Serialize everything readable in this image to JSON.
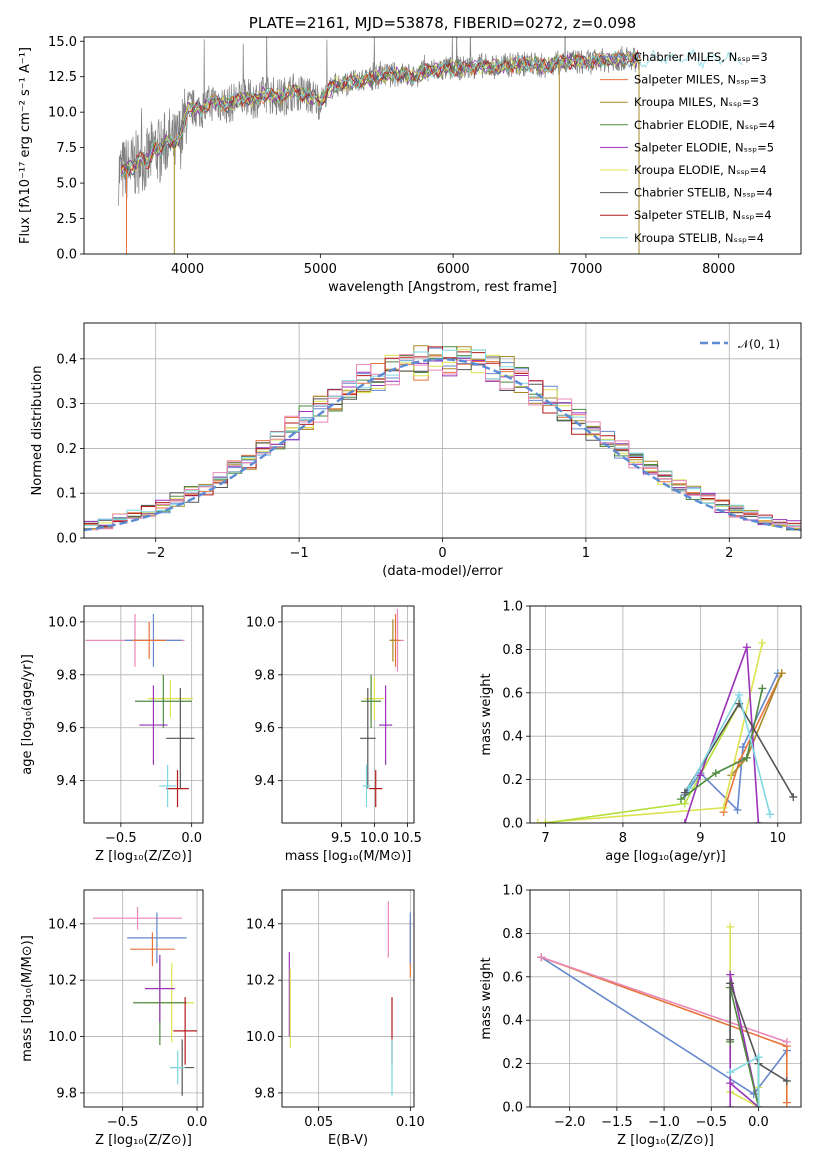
{
  "colors": {
    "chabrier_miles": "#6688cc",
    "salpeter_miles": "#e8743b",
    "kroupa_miles": "#a88a2a",
    "chabrier_elodie": "#4e8a40",
    "salpeter_elodie": "#9a33b8",
    "kroupa_elodie": "#dce34f",
    "chabrier_stelib": "#555555",
    "salpeter_stelib": "#b31b1b",
    "kroupa_stelib": "#7ed7e2",
    "pink": "#e889b8",
    "lime": "#b5df3a",
    "olive": "#8a9a3a",
    "data": "#808080",
    "normal": "#5b8bd5"
  },
  "chart_data": [
    {
      "id": "spectrum",
      "type": "line",
      "title": "PLATE=2161, MJD=53878, FIBERID=0272, z=0.098",
      "xlabel": "wavelength [Angstrom, rest frame]",
      "ylabel": "Flux [fλ10⁻¹⁷ erg cm⁻² s⁻¹ A⁻¹]",
      "xlim": [
        3220,
        8620
      ],
      "ylim": [
        0,
        15.3
      ],
      "xticks": [
        "4000",
        "5000",
        "6000",
        "7000",
        "8000"
      ],
      "yticks": [
        "0.0",
        "2.5",
        "5.0",
        "7.5",
        "10.0",
        "12.5",
        "15.0"
      ],
      "legend_position": "top-right",
      "legend": [
        {
          "label": "Chabrier MILES, Nₛₛₚ=3",
          "color": "#6688cc"
        },
        {
          "label": "Salpeter MILES, Nₛₛₚ=3",
          "color": "#e8743b"
        },
        {
          "label": "Kroupa MILES, Nₛₛₚ=3",
          "color": "#a88a2a"
        },
        {
          "label": "Chabrier ELODIE, Nₛₛₚ=4",
          "color": "#4e8a40"
        },
        {
          "label": "Salpeter ELODIE, Nₛₛₚ=5",
          "color": "#9a33b8"
        },
        {
          "label": "Kroupa ELODIE, Nₛₛₚ=4",
          "color": "#dce34f"
        },
        {
          "label": "Chabrier STELIB, Nₛₛₚ=4",
          "color": "#555555"
        },
        {
          "label": "Salpeter STELIB, Nₛₛₚ=4",
          "color": "#b31b1b"
        },
        {
          "label": "Kroupa STELIB, Nₛₛₚ=4",
          "color": "#7ed7e2"
        }
      ],
      "model_x": [
        3500,
        3550,
        3600,
        3650,
        3700,
        3750,
        3800,
        3850,
        3900,
        3950,
        4000,
        4100,
        4200,
        4300,
        4400,
        4500,
        4600,
        4700,
        4800,
        4900,
        5000,
        5100,
        5200,
        5300,
        5400,
        5500,
        5600,
        5700,
        5800,
        5900,
        6000,
        6100,
        6200,
        6300,
        6400,
        6500,
        6600,
        6700,
        6800,
        6900,
        7000,
        7100,
        7200,
        7300,
        7400,
        7500,
        7600,
        7700,
        7800,
        7900,
        8000,
        8100,
        8200
      ],
      "model_y": [
        5.8,
        6.0,
        6.2,
        6.8,
        6.5,
        7.5,
        7.2,
        8.2,
        7.6,
        8.4,
        10.3,
        10.2,
        10.8,
        10.5,
        11.0,
        10.9,
        11.3,
        11.0,
        11.5,
        11.2,
        10.8,
        11.9,
        12.0,
        12.2,
        12.4,
        12.6,
        12.7,
        12.5,
        12.9,
        13.0,
        13.1,
        13.1,
        13.3,
        13.2,
        13.3,
        13.4,
        13.4,
        13.2,
        13.5,
        13.6,
        13.5,
        13.6,
        13.7,
        13.8,
        13.7,
        13.8,
        13.9,
        13.7,
        13.9,
        13.6,
        13.8,
        13.7,
        13.8
      ],
      "drop_lines_x": [
        3900,
        6800,
        7400
      ]
    },
    {
      "id": "residuals",
      "type": "histogram",
      "xlabel": "(data-model)/error",
      "ylabel": "Normed distribution",
      "xlim": [
        -2.5,
        2.5
      ],
      "ylim": [
        0,
        0.48
      ],
      "xticks": [
        "−2",
        "−1",
        "0",
        "1",
        "2"
      ],
      "yticks": [
        "0.0",
        "0.1",
        "0.2",
        "0.3",
        "0.4"
      ],
      "grid": true,
      "legend_position": "top-right",
      "legend": [
        {
          "label": "𝒩(0, 1)",
          "color": "#5b8bd5"
        }
      ],
      "bin_width": 0.1
    },
    {
      "id": "age_vs_Z",
      "type": "errorbar",
      "xlabel": "Z [log₁₀(Z/Z⊙)]",
      "ylabel": "age  [log₁₀(age/yr)]",
      "xlim": [
        -0.76,
        0.08
      ],
      "ylim": [
        9.24,
        10.06
      ],
      "xticks": [
        "−0.5",
        "0.0"
      ],
      "yticks": [
        "9.4",
        "9.6",
        "9.8",
        "10.0"
      ],
      "grid": true,
      "points": [
        {
          "x": -0.4,
          "y": 9.93,
          "xerr": 0.35,
          "yerr": 0.1,
          "color": "#e889b8"
        },
        {
          "x": -0.27,
          "y": 9.93,
          "xerr": 0.2,
          "yerr": 0.1,
          "color": "#6688cc"
        },
        {
          "x": -0.3,
          "y": 9.93,
          "xerr": 0.12,
          "yerr": 0.07,
          "color": "#e8743b"
        },
        {
          "x": -0.15,
          "y": 9.71,
          "xerr": 0.16,
          "yerr": 0.07,
          "color": "#dce34f"
        },
        {
          "x": -0.2,
          "y": 9.7,
          "xerr": 0.2,
          "yerr": 0.1,
          "color": "#4e8a40"
        },
        {
          "x": -0.27,
          "y": 9.61,
          "xerr": 0.1,
          "yerr": 0.15,
          "color": "#9a33b8"
        },
        {
          "x": -0.08,
          "y": 9.56,
          "xerr": 0.1,
          "yerr": 0.19,
          "color": "#555555"
        },
        {
          "x": -0.1,
          "y": 9.37,
          "xerr": 0.08,
          "yerr": 0.07,
          "color": "#b31b1b"
        },
        {
          "x": -0.17,
          "y": 9.38,
          "xerr": 0.06,
          "yerr": 0.08,
          "color": "#7ed7e2"
        }
      ]
    },
    {
      "id": "age_vs_mass",
      "type": "errorbar",
      "xlabel": "mass [log₁₀(M/M⊙)]",
      "ylabel": "",
      "xlim": [
        8.6,
        10.6
      ],
      "ylim": [
        9.24,
        10.06
      ],
      "xticks": [
        "9.5",
        "10.0",
        "10.5"
      ],
      "yticks": [
        "9.4",
        "9.6",
        "9.8",
        "10.0"
      ],
      "grid": true,
      "points": [
        {
          "x": 10.35,
          "y": 9.93,
          "xerr": 0.1,
          "yerr": 0.12,
          "color": "#e889b8"
        },
        {
          "x": 10.32,
          "y": 9.93,
          "xerr": 0.08,
          "yerr": 0.1,
          "color": "#e8743b"
        },
        {
          "x": 10.28,
          "y": 9.93,
          "xerr": 0.05,
          "yerr": 0.08,
          "color": "#a88a2a"
        },
        {
          "x": 10.0,
          "y": 9.71,
          "xerr": 0.15,
          "yerr": 0.08,
          "color": "#dce34f"
        },
        {
          "x": 9.95,
          "y": 9.7,
          "xerr": 0.15,
          "yerr": 0.1,
          "color": "#4e8a40"
        },
        {
          "x": 10.17,
          "y": 9.61,
          "xerr": 0.1,
          "yerr": 0.15,
          "color": "#9a33b8"
        },
        {
          "x": 9.9,
          "y": 9.56,
          "xerr": 0.12,
          "yerr": 0.19,
          "color": "#555555"
        },
        {
          "x": 10.02,
          "y": 9.37,
          "xerr": 0.1,
          "yerr": 0.07,
          "color": "#b31b1b"
        },
        {
          "x": 9.88,
          "y": 9.38,
          "xerr": 0.06,
          "yerr": 0.08,
          "color": "#7ed7e2"
        }
      ]
    },
    {
      "id": "weight_vs_age",
      "type": "line",
      "xlabel": "age  [log₁₀(age/yr)]",
      "ylabel": "mass weight",
      "xlim": [
        6.8,
        10.3
      ],
      "ylim": [
        0,
        1.0
      ],
      "xticks": [
        "7",
        "8",
        "9",
        "10"
      ],
      "yticks": [
        "0.0",
        "0.2",
        "0.4",
        "0.6",
        "0.8",
        "1.0"
      ],
      "grid": true,
      "series": [
        {
          "color": "#6688cc",
          "x": [
            8.8,
            9.0,
            9.48,
            9.55,
            10.0
          ],
          "y": [
            0.13,
            0.23,
            0.06,
            0.35,
            0.69
          ]
        },
        {
          "color": "#e8743b",
          "x": [
            9.3,
            9.5,
            10.05
          ],
          "y": [
            0.05,
            0.28,
            0.69
          ]
        },
        {
          "color": "#a88a2a",
          "x": [
            9.4,
            9.6,
            10.05
          ],
          "y": [
            0.22,
            0.3,
            0.69
          ]
        },
        {
          "color": "#dce34f",
          "x": [
            6.9,
            9.3,
            9.8
          ],
          "y": [
            0.0,
            0.07,
            0.83
          ]
        },
        {
          "color": "#b5df3a",
          "x": [
            7.0,
            8.8,
            9.5
          ],
          "y": [
            0.0,
            0.09,
            0.55
          ]
        },
        {
          "color": "#9a33b8",
          "x": [
            8.8,
            9.0,
            9.6,
            9.75
          ],
          "y": [
            0.0,
            0.22,
            0.81,
            0.0
          ]
        },
        {
          "color": "#4e8a40",
          "x": [
            8.75,
            9.2,
            9.6,
            9.8
          ],
          "y": [
            0.11,
            0.23,
            0.3,
            0.62
          ]
        },
        {
          "color": "#555555",
          "x": [
            8.8,
            9.5,
            10.2
          ],
          "y": [
            0.14,
            0.55,
            0.12
          ]
        },
        {
          "color": "#7ed7e2",
          "x": [
            8.85,
            9.5,
            9.9
          ],
          "y": [
            0.16,
            0.59,
            0.04
          ]
        }
      ]
    },
    {
      "id": "mass_vs_Z",
      "type": "errorbar",
      "xlabel": "Z [log₁₀(Z/Z⊙)]",
      "ylabel": "mass [log₁₀(M/M⊙)]",
      "xlim": [
        -0.76,
        0.04
      ],
      "ylim": [
        9.75,
        10.52
      ],
      "xticks": [
        "−0.5",
        "0.0"
      ],
      "yticks": [
        "9.8",
        "10.0",
        "10.2",
        "10.4"
      ],
      "grid": true,
      "points": [
        {
          "x": -0.4,
          "y": 10.42,
          "xerr": 0.3,
          "yerr": 0.04,
          "color": "#e889b8"
        },
        {
          "x": -0.27,
          "y": 10.35,
          "xerr": 0.2,
          "yerr": 0.09,
          "color": "#6688cc"
        },
        {
          "x": -0.3,
          "y": 10.31,
          "xerr": 0.15,
          "yerr": 0.06,
          "color": "#e8743b"
        },
        {
          "x": -0.17,
          "y": 10.12,
          "xerr": 0.15,
          "yerr": 0.14,
          "color": "#dce34f"
        },
        {
          "x": -0.25,
          "y": 10.12,
          "xerr": 0.18,
          "yerr": 0.15,
          "color": "#4e8a40"
        },
        {
          "x": -0.25,
          "y": 10.17,
          "xerr": 0.1,
          "yerr": 0.12,
          "color": "#9a33b8"
        },
        {
          "x": -0.08,
          "y": 10.02,
          "xerr": 0.08,
          "yerr": 0.12,
          "color": "#b31b1b"
        },
        {
          "x": -0.1,
          "y": 9.89,
          "xerr": 0.08,
          "yerr": 0.1,
          "color": "#555555"
        },
        {
          "x": -0.13,
          "y": 9.89,
          "xerr": 0.05,
          "yerr": 0.06,
          "color": "#7ed7e2"
        }
      ]
    },
    {
      "id": "mass_vs_ebv",
      "type": "errorbar",
      "xlabel": "E(B-V)",
      "ylabel": "",
      "xlim": [
        0.03,
        0.102
      ],
      "ylim": [
        9.75,
        10.52
      ],
      "xticks": [
        "0.05",
        "0.10"
      ],
      "yticks": [
        "9.8",
        "10.0",
        "10.2",
        "10.4"
      ],
      "grid": true,
      "points": [
        {
          "x": 0.034,
          "y": 10.15,
          "xerr": 0,
          "yerr": 0.15,
          "color": "#9a33b8"
        },
        {
          "x": 0.0345,
          "y": 10.1,
          "xerr": 0,
          "yerr": 0.14,
          "color": "#dce34f"
        },
        {
          "x": 0.088,
          "y": 10.38,
          "xerr": 0,
          "yerr": 0.1,
          "color": "#e889b8"
        },
        {
          "x": 0.09,
          "y": 10.02,
          "xerr": 0,
          "yerr": 0.12,
          "color": "#b31b1b"
        },
        {
          "x": 0.09,
          "y": 9.89,
          "xerr": 0,
          "yerr": 0.1,
          "color": "#7ed7e2"
        },
        {
          "x": 0.1,
          "y": 10.31,
          "xerr": 0,
          "yerr": 0.1,
          "color": "#e8743b"
        },
        {
          "x": 0.1,
          "y": 10.35,
          "xerr": 0,
          "yerr": 0.09,
          "color": "#6688cc"
        }
      ]
    },
    {
      "id": "weight_vs_Z",
      "type": "line",
      "xlabel": "Z [log₁₀(Z/Z⊙)]",
      "ylabel": "mass weight",
      "xlim": [
        -2.42,
        0.45
      ],
      "ylim": [
        0,
        1.0
      ],
      "xticks": [
        "−2.0",
        "−1.5",
        "−1.0",
        "−0.5",
        "0.0"
      ],
      "yticks": [
        "0.0",
        "0.2",
        "0.4",
        "0.6",
        "0.8",
        "1.0"
      ],
      "grid": true,
      "series": [
        {
          "color": "#6688cc",
          "x": [
            -2.3,
            -0.05,
            0.3
          ],
          "y": [
            0.69,
            0.06,
            0.26
          ]
        },
        {
          "color": "#e8743b",
          "x": [
            -2.3,
            0.3,
            0.3
          ],
          "y": [
            0.69,
            0.28,
            0.02
          ]
        },
        {
          "color": "#e889b8",
          "x": [
            -2.3,
            0.3
          ],
          "y": [
            0.69,
            0.3
          ]
        },
        {
          "color": "#dce34f",
          "x": [
            -0.3,
            -0.3,
            0.0,
            0.0
          ],
          "y": [
            0.83,
            0.07,
            0.0,
            0.09
          ]
        },
        {
          "color": "#9a33b8",
          "x": [
            -0.3,
            -0.3,
            0.0,
            -0.3
          ],
          "y": [
            0.0,
            0.61,
            0.0,
            0.11
          ]
        },
        {
          "color": "#4e8a40",
          "x": [
            -0.3,
            -0.3,
            0.0,
            0.0
          ],
          "y": [
            0.3,
            0.55,
            0.0,
            0.23
          ]
        },
        {
          "color": "#555555",
          "x": [
            -0.3,
            -0.3,
            0.0,
            0.3
          ],
          "y": [
            0.31,
            0.57,
            0.2,
            0.12
          ]
        },
        {
          "color": "#7ed7e2",
          "x": [
            -0.3,
            0.0,
            0.0
          ],
          "y": [
            0.16,
            0.23,
            0.0
          ]
        }
      ]
    }
  ]
}
